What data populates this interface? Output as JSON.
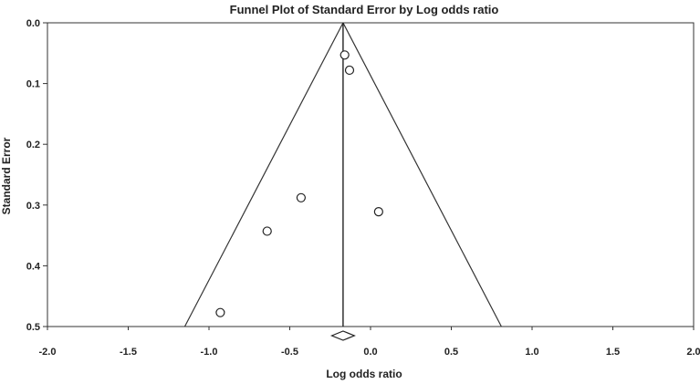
{
  "chart_data": {
    "type": "scatter",
    "title": "Funnel Plot of Standard Error by Log odds ratio",
    "xlabel": "Log odds ratio",
    "ylabel": "Standard Error",
    "xlim": [
      -2.0,
      2.0
    ],
    "ylim": [
      0.0,
      0.5
    ],
    "y_inverted": true,
    "grid": false,
    "legend": "none",
    "x_ticks": [
      "-2.0",
      "-1.5",
      "-1.0",
      "-0.5",
      "0.0",
      "0.5",
      "1.0",
      "1.5",
      "2.0"
    ],
    "y_ticks": [
      "0.0",
      "0.1",
      "0.2",
      "0.3",
      "0.4",
      "0.5"
    ],
    "points": [
      {
        "x": -0.16,
        "y": 0.053
      },
      {
        "x": -0.13,
        "y": 0.078
      },
      {
        "x": -0.43,
        "y": 0.288
      },
      {
        "x": 0.05,
        "y": 0.311
      },
      {
        "x": -0.64,
        "y": 0.343
      },
      {
        "x": -0.93,
        "y": 0.477
      }
    ],
    "combined_estimate": -0.17,
    "funnel_base": [
      -1.15,
      0.81
    ],
    "summary_diamond": {
      "center": -0.17,
      "lower": -0.24,
      "upper": -0.1
    }
  }
}
